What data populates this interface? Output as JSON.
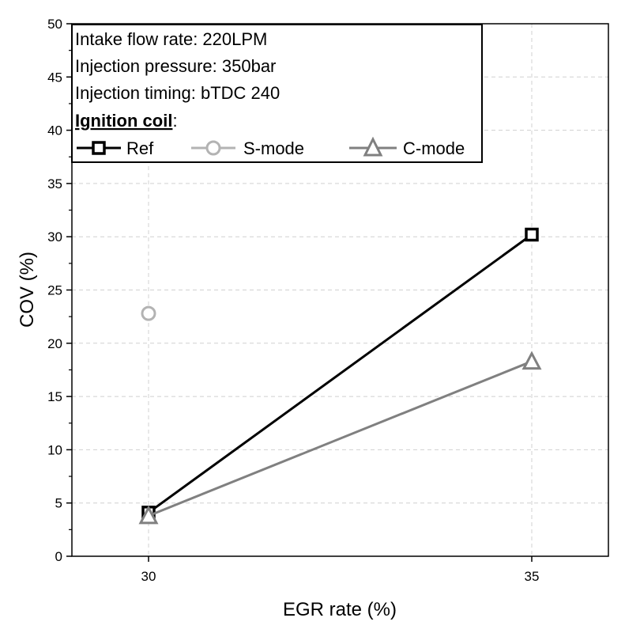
{
  "chart_data": {
    "type": "line",
    "xlabel": "EGR rate (%)",
    "ylabel": "COV (%)",
    "x_ticks": [
      30,
      35
    ],
    "y_ticks": [
      0,
      5,
      10,
      15,
      20,
      25,
      30,
      35,
      40,
      45,
      50
    ],
    "xlim": [
      29,
      36
    ],
    "ylim": [
      0,
      50
    ],
    "grid": "dashed",
    "info_lines": [
      "Intake flow rate: 220LPM",
      "Injection pressure: 350bar",
      "Injection timing: bTDC 240"
    ],
    "legend_title": "Ignition coil",
    "legend_title_suffix": ":",
    "legend_position": "top-left",
    "series": [
      {
        "name": "Ref",
        "marker": "square",
        "color": "#000000",
        "x": [
          30,
          35
        ],
        "y": [
          4.1,
          30.2
        ]
      },
      {
        "name": "S-mode",
        "marker": "circle",
        "color": "#b3b3b3",
        "x": [
          30
        ],
        "y": [
          22.8
        ]
      },
      {
        "name": "C-mode",
        "marker": "triangle",
        "color": "#808080",
        "x": [
          30,
          35
        ],
        "y": [
          3.8,
          18.3
        ]
      }
    ]
  }
}
